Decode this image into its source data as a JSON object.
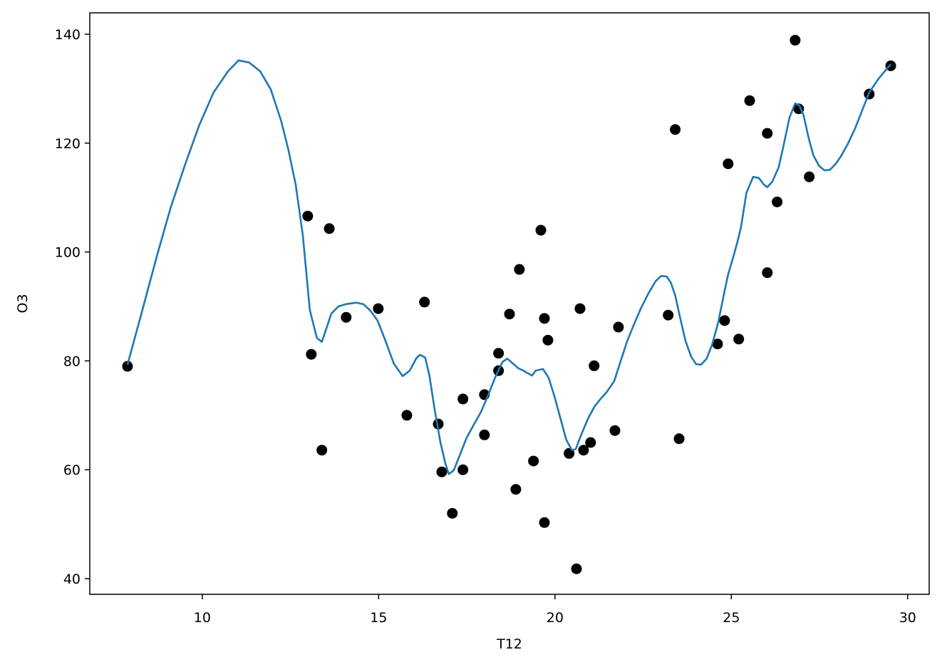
{
  "chart_data": {
    "type": "scatter",
    "xlabel": "T12",
    "ylabel": "O3",
    "xlim": [
      6.81,
      30.61
    ],
    "ylim": [
      37.12,
      143.93
    ],
    "xticks": [
      10,
      15,
      20,
      25,
      30
    ],
    "yticks": [
      40,
      60,
      80,
      100,
      120,
      140
    ],
    "grid": false,
    "series": [
      {
        "type": "scatter",
        "color": "#000000",
        "x": [
          7.88,
          12.99,
          13.09,
          13.39,
          13.6,
          14.08,
          14.99,
          15.8,
          16.3,
          16.69,
          16.79,
          17.09,
          17.39,
          17.39,
          18.0,
          18.0,
          18.4,
          18.4,
          18.71,
          18.89,
          18.99,
          19.39,
          19.6,
          19.7,
          19.7,
          19.8,
          20.4,
          20.61,
          20.71,
          20.81,
          21.01,
          21.11,
          21.7,
          21.8,
          23.21,
          23.41,
          23.52,
          24.61,
          24.81,
          24.91,
          25.21,
          25.52,
          26.02,
          26.02,
          26.3,
          26.81,
          26.91,
          27.21,
          28.91,
          29.52
        ],
        "values": [
          79.0,
          106.6,
          81.2,
          63.6,
          104.3,
          88.0,
          89.6,
          70.0,
          90.8,
          68.4,
          59.6,
          52.0,
          73.0,
          60.0,
          73.8,
          66.4,
          81.4,
          78.2,
          88.6,
          56.4,
          96.8,
          61.6,
          104.0,
          87.8,
          50.3,
          83.8,
          63.0,
          41.8,
          89.6,
          63.6,
          65.0,
          79.1,
          67.2,
          86.2,
          88.4,
          122.5,
          65.7,
          83.1,
          87.4,
          116.2,
          84.0,
          127.8,
          121.8,
          96.2,
          109.2,
          138.9,
          126.3,
          113.8,
          129.0,
          134.2
        ]
      },
      {
        "type": "line",
        "color": "#1f77b4",
        "x": [
          7.88,
          8.3,
          8.71,
          9.11,
          9.52,
          9.92,
          10.32,
          10.73,
          11.03,
          11.33,
          11.64,
          11.94,
          12.24,
          12.44,
          12.65,
          12.85,
          13.05,
          13.25,
          13.39,
          13.49,
          13.66,
          13.86,
          14.06,
          14.36,
          14.57,
          14.77,
          14.97,
          15.17,
          15.43,
          15.68,
          15.88,
          16.08,
          16.18,
          16.32,
          16.44,
          16.59,
          16.75,
          16.89,
          16.99,
          17.13,
          17.29,
          17.49,
          17.7,
          17.9,
          18.1,
          18.3,
          18.51,
          18.65,
          18.81,
          18.97,
          19.11,
          19.21,
          19.35,
          19.45,
          19.66,
          19.82,
          19.98,
          20.16,
          20.32,
          20.48,
          20.59,
          20.73,
          20.93,
          21.11,
          21.29,
          21.47,
          21.68,
          21.84,
          22.04,
          22.24,
          22.44,
          22.65,
          22.85,
          23.01,
          23.17,
          23.29,
          23.41,
          23.56,
          23.7,
          23.86,
          24.0,
          24.14,
          24.3,
          24.46,
          24.63,
          24.77,
          24.91,
          25.07,
          25.17,
          25.27,
          25.43,
          25.62,
          25.78,
          25.92,
          26.02,
          26.16,
          26.34,
          26.48,
          26.65,
          26.81,
          26.93,
          27.05,
          27.19,
          27.33,
          27.49,
          27.64,
          27.8,
          27.96,
          28.1,
          28.3,
          28.51,
          28.71,
          28.91,
          29.15,
          29.35,
          29.52
        ],
        "values": [
          79.3,
          89.3,
          99.2,
          108.3,
          116.2,
          123.4,
          129.3,
          133.2,
          135.2,
          134.8,
          133.2,
          129.9,
          124.0,
          118.8,
          112.3,
          103.1,
          89.3,
          84.2,
          83.5,
          85.4,
          88.7,
          90.0,
          90.4,
          90.7,
          90.4,
          89.2,
          87.4,
          84.1,
          79.5,
          77.2,
          78.2,
          80.6,
          81.1,
          80.6,
          77.3,
          71.0,
          65.1,
          61.2,
          59.2,
          59.9,
          62.5,
          65.8,
          68.3,
          70.6,
          73.6,
          76.9,
          79.8,
          80.4,
          79.5,
          78.6,
          78.2,
          77.8,
          77.3,
          78.2,
          78.5,
          76.9,
          73.6,
          69.3,
          65.5,
          63.6,
          63.8,
          66.2,
          69.3,
          71.5,
          73.0,
          74.3,
          76.3,
          79.5,
          83.5,
          86.7,
          89.7,
          92.4,
          94.6,
          95.6,
          95.5,
          94.3,
          92.0,
          87.6,
          83.7,
          80.8,
          79.4,
          79.3,
          80.4,
          83.1,
          87.1,
          91.6,
          95.9,
          99.4,
          101.8,
          104.4,
          110.9,
          113.8,
          113.6,
          112.4,
          111.9,
          112.9,
          115.5,
          119.5,
          124.7,
          127.3,
          126.9,
          125.1,
          121.0,
          117.7,
          115.8,
          115.0,
          115.1,
          116.2,
          117.5,
          119.8,
          122.7,
          126.0,
          129.3,
          131.6,
          133.2,
          134.5
        ]
      }
    ]
  }
}
